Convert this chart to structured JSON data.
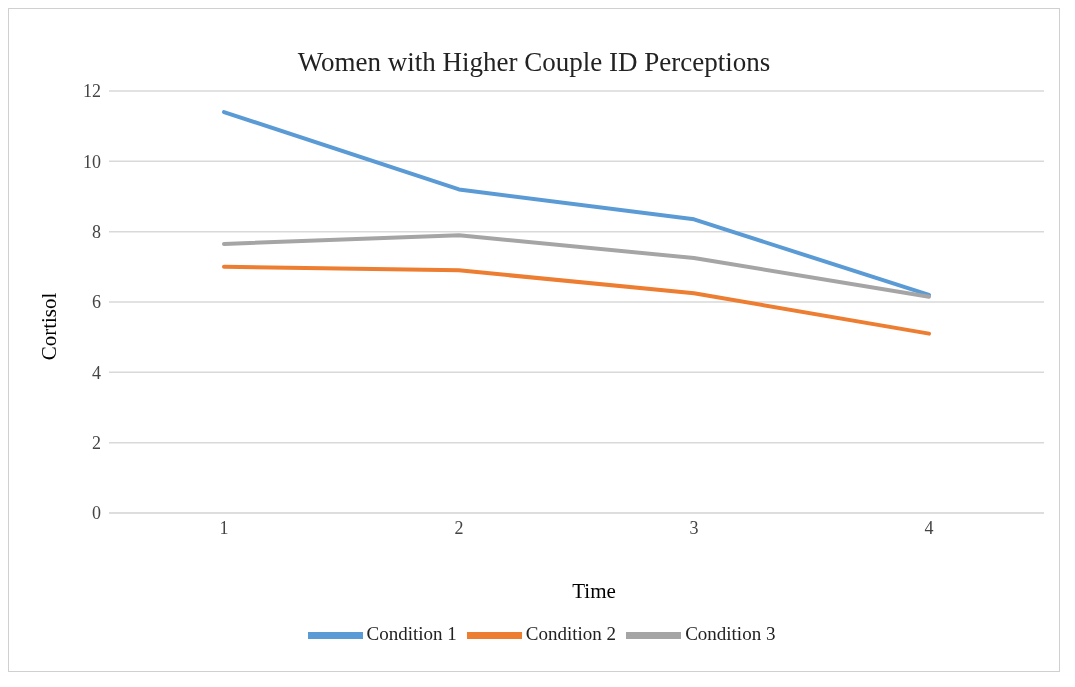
{
  "chart_data": {
    "type": "line",
    "title": "Women with Higher Couple ID Perceptions",
    "xlabel": "Time",
    "ylabel": "Cortisol",
    "categories": [
      "1",
      "2",
      "3",
      "4"
    ],
    "series": [
      {
        "name": "Condition 1",
        "color": "#5b9bd5",
        "values": [
          11.4,
          9.2,
          8.35,
          6.2
        ]
      },
      {
        "name": "Condition 2",
        "color": "#ed7d31",
        "values": [
          7.0,
          6.9,
          6.25,
          5.1
        ]
      },
      {
        "name": "Condition 3",
        "color": "#a5a5a5",
        "values": [
          7.65,
          7.9,
          7.25,
          6.15
        ]
      }
    ],
    "ylim": [
      0,
      12
    ],
    "yticks": [
      0,
      2,
      4,
      6,
      8,
      10,
      12
    ],
    "grid": "y",
    "legend": "bottom",
    "marker": "none",
    "line_style": "solid"
  }
}
